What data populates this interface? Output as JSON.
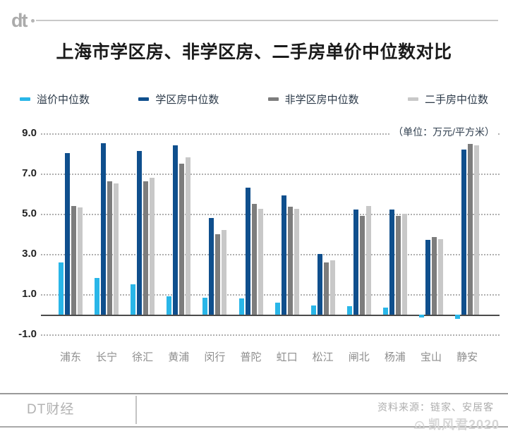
{
  "header": {
    "logo": "dt",
    "title": "上海市学区房、非学区房、二手房单价中位数对比"
  },
  "chart_data": {
    "type": "bar",
    "title": "上海市学区房、非学区房、二手房单价中位数对比",
    "unit_label": "（单位：万元/平方米）",
    "categories": [
      "浦东",
      "长宁",
      "徐汇",
      "黄浦",
      "闵行",
      "普陀",
      "虹口",
      "松江",
      "闸北",
      "杨浦",
      "宝山",
      "静安"
    ],
    "series": [
      {
        "name": "溢价中位数",
        "color": "#29b6e8",
        "values": [
          2.6,
          1.8,
          1.5,
          0.9,
          0.85,
          0.8,
          0.6,
          0.45,
          0.4,
          0.35,
          -0.15,
          -0.2
        ]
      },
      {
        "name": "学区房中位数",
        "color": "#0f4f8d",
        "values": [
          8.0,
          8.5,
          8.1,
          8.4,
          4.8,
          6.3,
          5.9,
          3.0,
          5.2,
          5.2,
          3.7,
          8.2
        ]
      },
      {
        "name": "非学区房中位数",
        "color": "#7d7d7d",
        "values": [
          5.4,
          6.6,
          6.6,
          7.5,
          4.0,
          5.5,
          5.35,
          2.6,
          4.9,
          4.9,
          3.85,
          8.45
        ]
      },
      {
        "name": "二手房中位数",
        "color": "#c8c8c8",
        "values": [
          5.3,
          6.5,
          6.8,
          7.8,
          4.2,
          5.25,
          5.25,
          2.7,
          5.4,
          5.0,
          3.75,
          8.4
        ]
      }
    ],
    "yticks": [
      9.0,
      7.0,
      5.0,
      3.0,
      1.0,
      -1.0
    ],
    "ylim": [
      -1.3,
      9.2
    ],
    "xlabel": "",
    "ylabel": "",
    "grid": "horizontal-dotted",
    "legend_position": "top"
  },
  "footer": {
    "brand": "DT财经",
    "source": "资料来源：链家、安居客",
    "watermark": "凯风君2020"
  }
}
